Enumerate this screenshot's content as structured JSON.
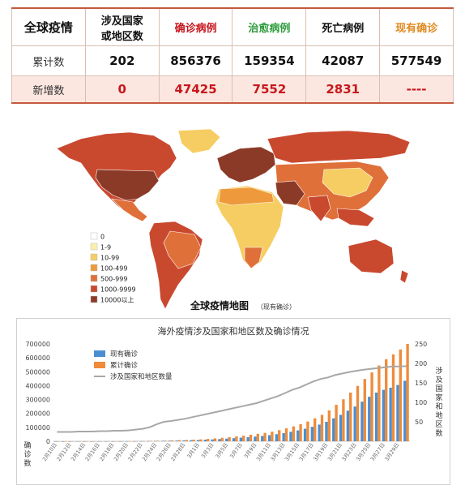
{
  "summary_table": {
    "corner": "全球疫情",
    "columns": [
      {
        "label": "涉及国家\n或地区数",
        "color": "#111111"
      },
      {
        "label": "确诊病例",
        "color": "#c8161d"
      },
      {
        "label": "治愈病例",
        "color": "#2e9b3c"
      },
      {
        "label": "死亡病例",
        "color": "#111111"
      },
      {
        "label": "现有确诊",
        "color": "#e08a22"
      }
    ],
    "rows": [
      {
        "label": "累计数",
        "values": [
          "202",
          "856376",
          "159354",
          "42087",
          "577549"
        ]
      },
      {
        "label": "新增数",
        "values": [
          "0",
          "47425",
          "7552",
          "2831",
          "----"
        ]
      }
    ]
  },
  "map": {
    "title": "全球疫情地图",
    "subtitle": "（现有确诊）",
    "legend": [
      {
        "label": "0",
        "color": "#ffffff"
      },
      {
        "label": "1-9",
        "color": "#fbefa9"
      },
      {
        "label": "10-99",
        "color": "#f6cd62"
      },
      {
        "label": "100-499",
        "color": "#ee9a3c"
      },
      {
        "label": "500-999",
        "color": "#e0703a"
      },
      {
        "label": "1000-9999",
        "color": "#c9492f"
      },
      {
        "label": "10000以上",
        "color": "#8c3a28"
      }
    ]
  },
  "chart_data": {
    "type": "bar",
    "title": "海外疫情涉及国家和地区数及确诊情况",
    "ylabel": "确诊数",
    "y2label": "涉及国家和地区数",
    "ylim": [
      0,
      700000
    ],
    "yticks": [
      "0",
      "100000",
      "200000",
      "300000",
      "400000",
      "500000",
      "600000",
      "700000"
    ],
    "y2lim": [
      0,
      250
    ],
    "y2ticks": [
      "50",
      "100",
      "150",
      "200",
      "250"
    ],
    "legend_position": "top-left",
    "categories": [
      "2月10日",
      "2月11日",
      "2月12日",
      "2月13日",
      "2月14日",
      "2月15日",
      "2月16日",
      "2月17日",
      "2月18日",
      "2月19日",
      "2月20日",
      "2月21日",
      "2月22日",
      "2月23日",
      "2月24日",
      "2月25日",
      "2月26日",
      "2月27日",
      "2月28日",
      "2月29日",
      "3月1日",
      "3月2日",
      "3月3日",
      "3月4日",
      "3月5日",
      "3月6日",
      "3月7日",
      "3月8日",
      "3月9日",
      "3月10日",
      "3月11日",
      "3月12日",
      "3月13日",
      "3月14日",
      "3月15日",
      "3月16日",
      "3月17日",
      "3月18日",
      "3月19日",
      "3月20日",
      "3月21日",
      "3月22日",
      "3月23日",
      "3月24日",
      "3月25日",
      "3月26日",
      "3月27日",
      "3月28日",
      "3月29日",
      "3月30日"
    ],
    "xtick_labels": [
      "2月10日",
      "2月12日",
      "2月14日",
      "2月16日",
      "2月18日",
      "2月20日",
      "2月22日",
      "2月24日",
      "2月26日",
      "2月28日",
      "3月1日",
      "3月3日",
      "3月5日",
      "3月7日",
      "3月9日",
      "3月11日",
      "3月13日",
      "3月15日",
      "3月17日",
      "3月19日",
      "3月21日",
      "3月23日",
      "3月25日",
      "3月27日",
      "3月29日"
    ],
    "series": [
      {
        "name": "现有确诊",
        "type": "bar",
        "axis": "left",
        "color": "#4a8fd1",
        "values": [
          300,
          320,
          350,
          380,
          400,
          450,
          480,
          500,
          550,
          600,
          700,
          900,
          1300,
          2000,
          2600,
          3300,
          4200,
          5200,
          6200,
          7500,
          9000,
          11000,
          13500,
          16000,
          19000,
          22500,
          26000,
          30000,
          34000,
          38000,
          44000,
          51000,
          59000,
          68000,
          78000,
          90000,
          104000,
          120000,
          140000,
          165000,
          190000,
          220000,
          250000,
          285000,
          320000,
          350000,
          370000,
          385000,
          405000,
          435000
        ]
      },
      {
        "name": "累计确诊",
        "type": "bar",
        "axis": "left",
        "color": "#ef8b3a",
        "values": [
          400,
          420,
          460,
          500,
          530,
          600,
          650,
          700,
          800,
          900,
          1100,
          1400,
          2000,
          3000,
          3900,
          5000,
          6400,
          8000,
          9600,
          11500,
          13800,
          17000,
          21000,
          25000,
          29500,
          35000,
          40500,
          47000,
          53500,
          60000,
          69000,
          80000,
          93000,
          107000,
          123000,
          142000,
          165000,
          190000,
          222000,
          262000,
          302000,
          350000,
          398000,
          448000,
          495000,
          545000,
          590000,
          625000,
          660000,
          700000
        ]
      },
      {
        "name": "涉及国家和地区数量",
        "type": "line",
        "axis": "right",
        "color": "#a8a8a8",
        "values": [
          24,
          24,
          24,
          25,
          25,
          25,
          26,
          26,
          27,
          27,
          28,
          30,
          32,
          36,
          44,
          50,
          52,
          55,
          58,
          62,
          66,
          70,
          74,
          78,
          82,
          86,
          90,
          94,
          98,
          104,
          110,
          116,
          124,
          132,
          138,
          146,
          154,
          160,
          164,
          170,
          174,
          178,
          181,
          184,
          186,
          188,
          190,
          192,
          192,
          193
        ]
      }
    ]
  }
}
